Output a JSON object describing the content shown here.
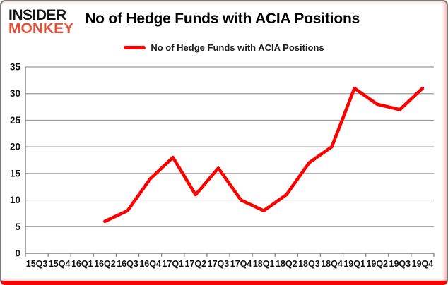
{
  "brand": {
    "line1": "INSIDER",
    "line2": "MONKEY"
  },
  "header": {
    "title": "No of Hedge Funds with ACIA Positions"
  },
  "legend": {
    "label": "No of Hedge Funds with ACIA Positions"
  },
  "colors": {
    "line": "#fe0000",
    "logo_accent": "#e2513a",
    "grid": "#9a9a9a",
    "axis": "#808080",
    "frame_border": "#7a7a7a",
    "frame_bottom_bar": "#f50505"
  },
  "chart_data": {
    "type": "line",
    "title": "No of Hedge Funds with ACIA Positions",
    "xlabel": "",
    "ylabel": "",
    "ylim": [
      0,
      35
    ],
    "ytick_step": 5,
    "grid": true,
    "legend_position": "top",
    "categories": [
      "15Q3",
      "15Q4",
      "16Q1",
      "16Q2",
      "16Q3",
      "16Q4",
      "17Q1",
      "17Q2",
      "17Q3",
      "17Q4",
      "18Q1",
      "18Q2",
      "18Q3",
      "18Q4",
      "19Q1",
      "19Q2",
      "19Q3",
      "19Q4"
    ],
    "series": [
      {
        "name": "No of Hedge Funds with ACIA Positions",
        "color": "#fe0000",
        "values": [
          null,
          null,
          null,
          6,
          8,
          14,
          18,
          11,
          16,
          10,
          8,
          11,
          17,
          20,
          31,
          28,
          27,
          31
        ]
      }
    ]
  }
}
